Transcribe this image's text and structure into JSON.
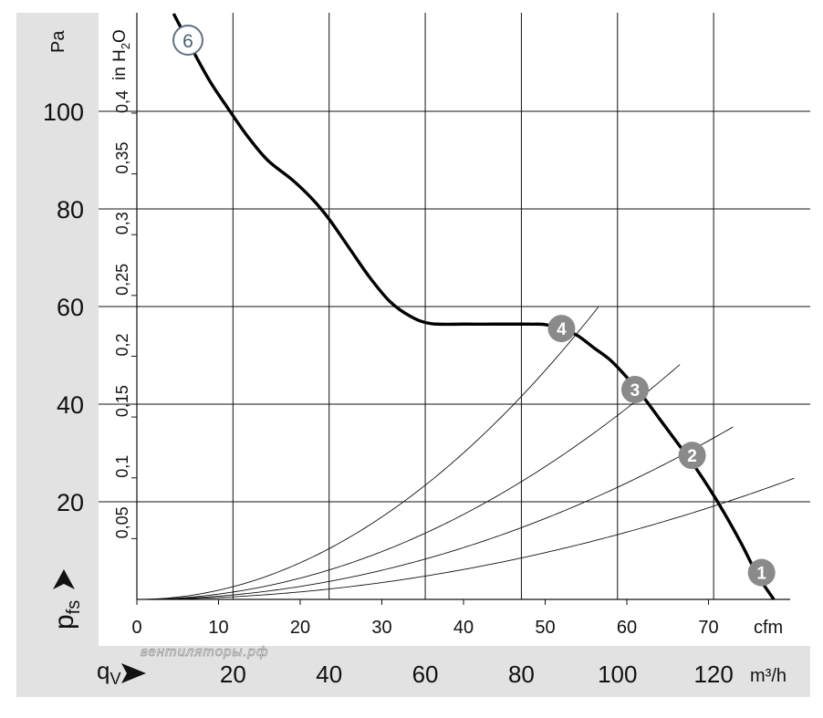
{
  "chart_data": {
    "type": "line",
    "x_units_top": "cfm",
    "x_units_bottom": "m³/h",
    "x_axis_label": "q",
    "x_axis_label_sub": "V",
    "y_axis_label": "p",
    "y_axis_label_sub": "fs",
    "y_units_left": "Pa",
    "y_units_inner": "in H",
    "y_units_inner_sub": "2",
    "y_units_inner_tail": "O",
    "cfm_range": [
      0,
      80
    ],
    "m3h_ticks": [
      20,
      40,
      60,
      80,
      100,
      120
    ],
    "cfm_ticks": [
      0,
      10,
      20,
      30,
      40,
      50,
      60,
      70
    ],
    "pa_ticks": [
      20,
      40,
      60,
      80,
      100
    ],
    "inh2o_ticks": [
      "0,05",
      "0,1",
      "0,15",
      "0,2",
      "0,25",
      "0,3",
      "0,35",
      "0,4"
    ],
    "inh2o_values": [
      0.05,
      0.1,
      0.15,
      0.2,
      0.25,
      0.3,
      0.35,
      0.4
    ],
    "pa_range": [
      0,
      120
    ],
    "watermark": "вентиляторы.рф",
    "fan_curve": {
      "marker": "6",
      "points": [
        [
          4.5,
          120
        ],
        [
          7,
          112
        ],
        [
          9,
          106
        ],
        [
          11,
          101
        ],
        [
          13.5,
          95
        ],
        [
          16,
          90
        ],
        [
          19,
          86
        ],
        [
          21.5,
          82
        ],
        [
          23.5,
          78
        ],
        [
          26,
          72
        ],
        [
          28.5,
          66
        ],
        [
          31,
          61
        ],
        [
          33.5,
          58
        ],
        [
          36,
          56.5
        ],
        [
          40,
          56.4
        ],
        [
          44,
          56.4
        ],
        [
          48,
          56.4
        ],
        [
          50,
          56.3
        ],
        [
          52,
          55.5
        ],
        [
          54,
          54
        ],
        [
          56,
          51.5
        ],
        [
          58,
          49
        ],
        [
          60,
          45.5
        ],
        [
          62,
          41.5
        ],
        [
          64,
          37
        ],
        [
          66,
          32.5
        ],
        [
          68,
          28
        ],
        [
          70,
          23
        ],
        [
          72,
          17.5
        ],
        [
          74,
          11.5
        ],
        [
          76,
          5
        ],
        [
          78,
          0
        ]
      ]
    },
    "system_curves": [
      {
        "marker": "1",
        "k": 0.00383,
        "x_end": 80.5,
        "marker_at": [
          76.5,
          5.5
        ]
      },
      {
        "marker": "2",
        "k": 0.00663,
        "x_end": 73,
        "marker_at": [
          68,
          29.5
        ]
      },
      {
        "marker": "3",
        "k": 0.01088,
        "x_end": 66.5,
        "marker_at": [
          61,
          43
        ]
      },
      {
        "marker": "4",
        "k": 0.01876,
        "x_end": 56.5,
        "marker_at": [
          52,
          55.5
        ]
      }
    ]
  }
}
